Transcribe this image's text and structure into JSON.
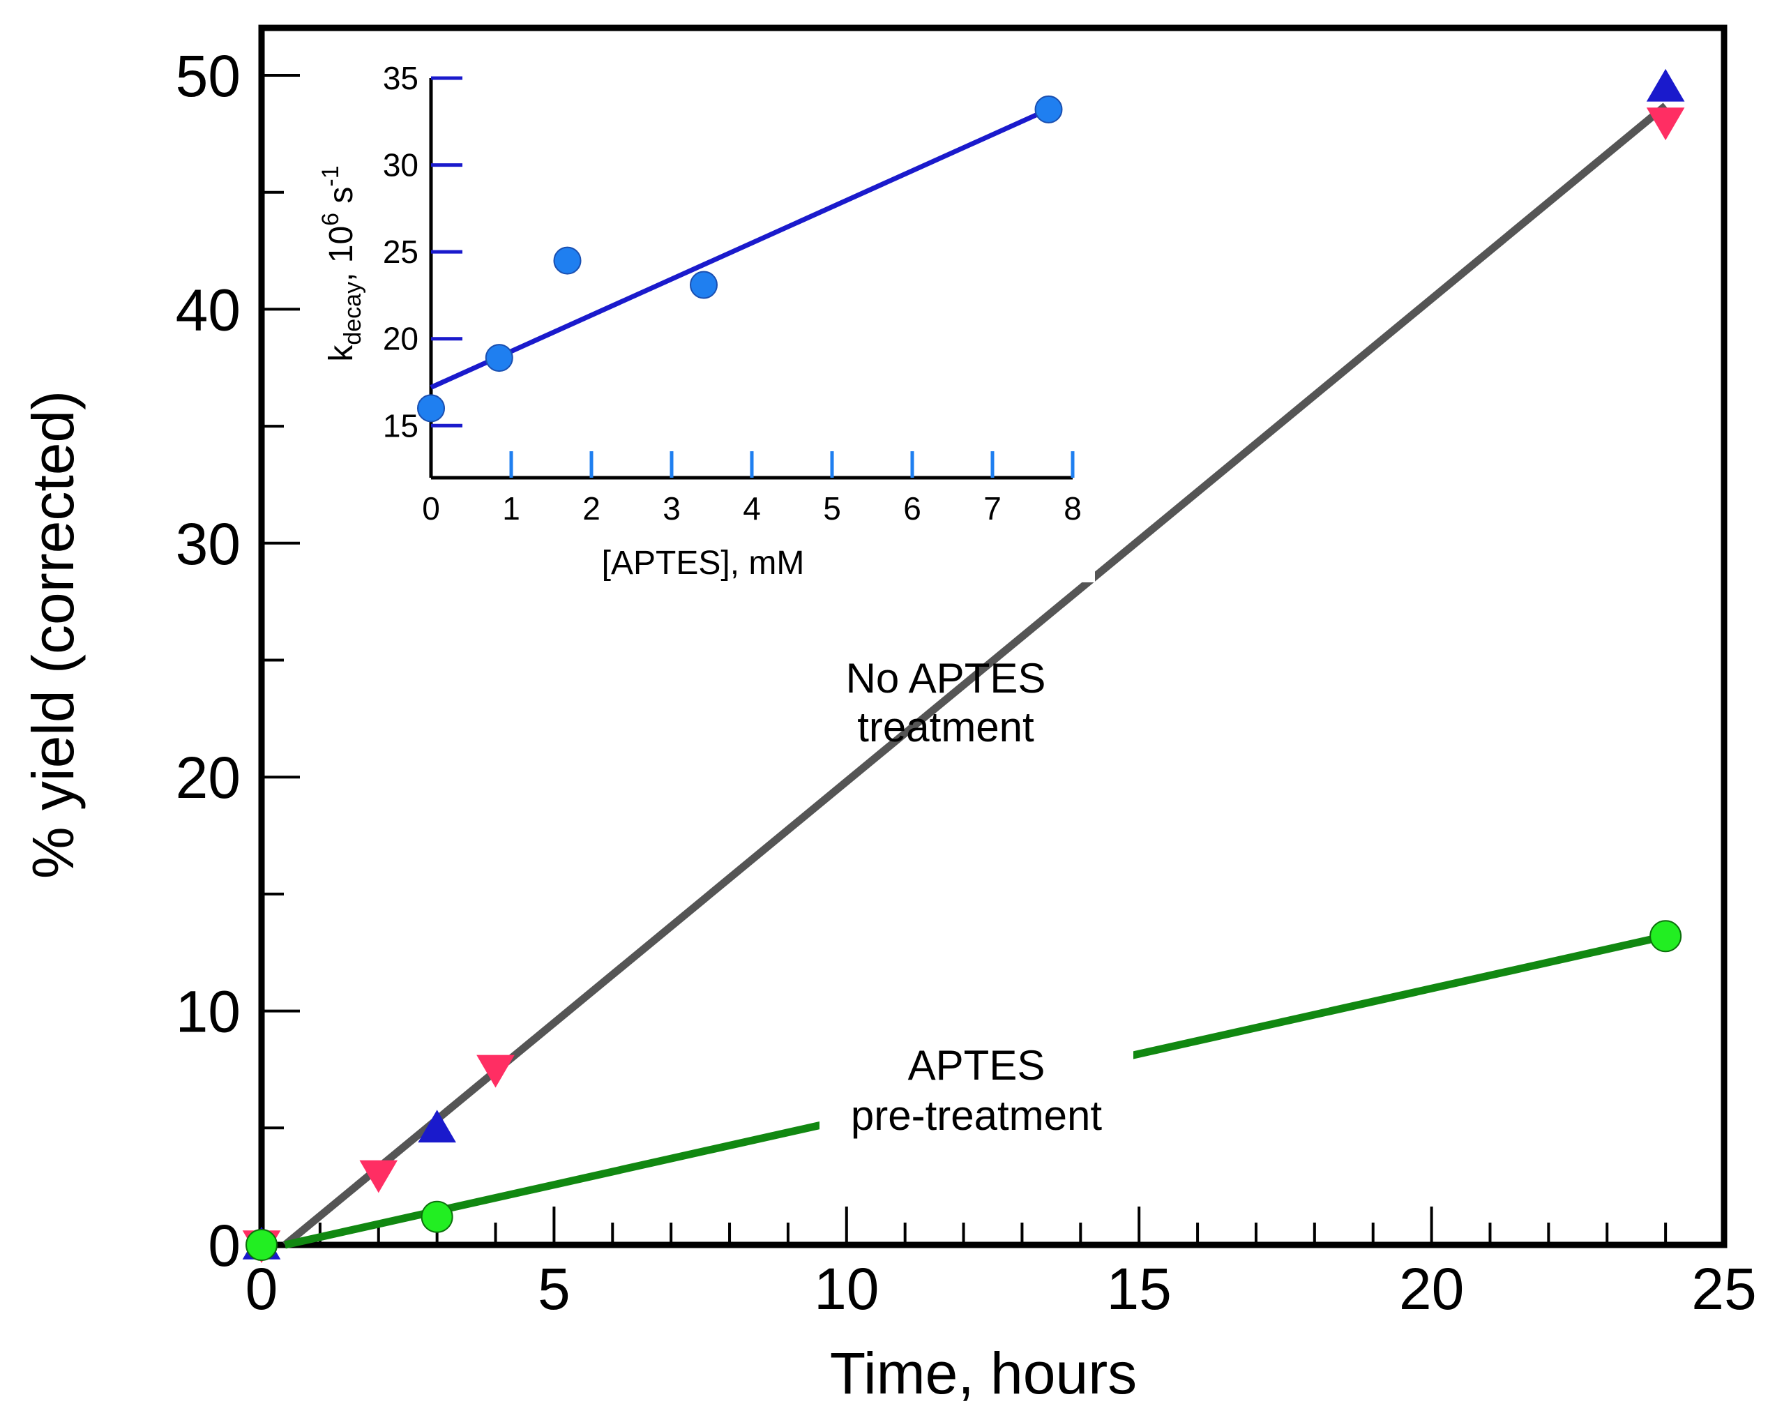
{
  "chart_data": [
    {
      "type": "scatter",
      "xlabel": "Time, hours",
      "ylabel": "% yield (corrected)",
      "xlim": [
        0,
        25
      ],
      "ylim": [
        0,
        50
      ],
      "xticks": [
        "0",
        "5",
        "10",
        "15",
        "20",
        "25"
      ],
      "yticks": [
        "0",
        "10",
        "20",
        "30",
        "40",
        "50"
      ],
      "series": [
        {
          "marker": "triangle-up",
          "color": "#1a1acc",
          "points": [
            {
              "x": 0,
              "y": 0
            },
            {
              "x": 3,
              "y": 5
            },
            {
              "x": 24,
              "y": 49.5
            }
          ]
        },
        {
          "marker": "triangle-down",
          "color": "#ff2e63",
          "points": [
            {
              "x": 0,
              "y": 0
            },
            {
              "x": 2,
              "y": 3
            },
            {
              "x": 4,
              "y": 7.5
            },
            {
              "x": 24,
              "y": 48
            }
          ]
        },
        {
          "marker": "circle",
          "color": "#22ee22",
          "points": [
            {
              "x": 0,
              "y": 0
            },
            {
              "x": 3,
              "y": 1.2
            },
            {
              "x": 24,
              "y": 13.2
            }
          ]
        }
      ],
      "fit_lines": [
        {
          "color": "#555555",
          "from": {
            "x": 0.4,
            "y": 0
          },
          "to": {
            "x": 24,
            "y": 48.7
          }
        },
        {
          "color": "#118811",
          "from": {
            "x": 0.4,
            "y": 0
          },
          "to": {
            "x": 24,
            "y": 13.2
          }
        }
      ],
      "annotations": [
        {
          "lines": [
            "No APTES",
            "treatment"
          ]
        },
        {
          "lines": [
            "APTES",
            "pre-treatment"
          ]
        }
      ]
    },
    {
      "type": "scatter",
      "inset": true,
      "xlabel": "[APTES], mM",
      "ylabel_main": "k",
      "ylabel_sub": "decay",
      "ylabel_rest": ", 10",
      "ylabel_sup": "6",
      "ylabel_unit": " s",
      "ylabel_unit_sup": "-1",
      "xlim": [
        0,
        8
      ],
      "ylim": [
        12,
        35
      ],
      "xticks": [
        "0",
        "1",
        "2",
        "3",
        "4",
        "5",
        "6",
        "7",
        "8"
      ],
      "yticks": [
        "15",
        "20",
        "25",
        "30",
        "35"
      ],
      "series": [
        {
          "marker": "circle",
          "color": "#1f7ff0",
          "points": [
            {
              "x": 0,
              "y": 16
            },
            {
              "x": 0.85,
              "y": 18.9
            },
            {
              "x": 1.7,
              "y": 24.5
            },
            {
              "x": 3.4,
              "y": 23.1
            },
            {
              "x": 7.7,
              "y": 33.2
            }
          ]
        }
      ],
      "fit_lines": [
        {
          "color": "#1a1acc",
          "from": {
            "x": 0,
            "y": 17.2
          },
          "to": {
            "x": 7.7,
            "y": 33.2
          }
        }
      ]
    }
  ]
}
